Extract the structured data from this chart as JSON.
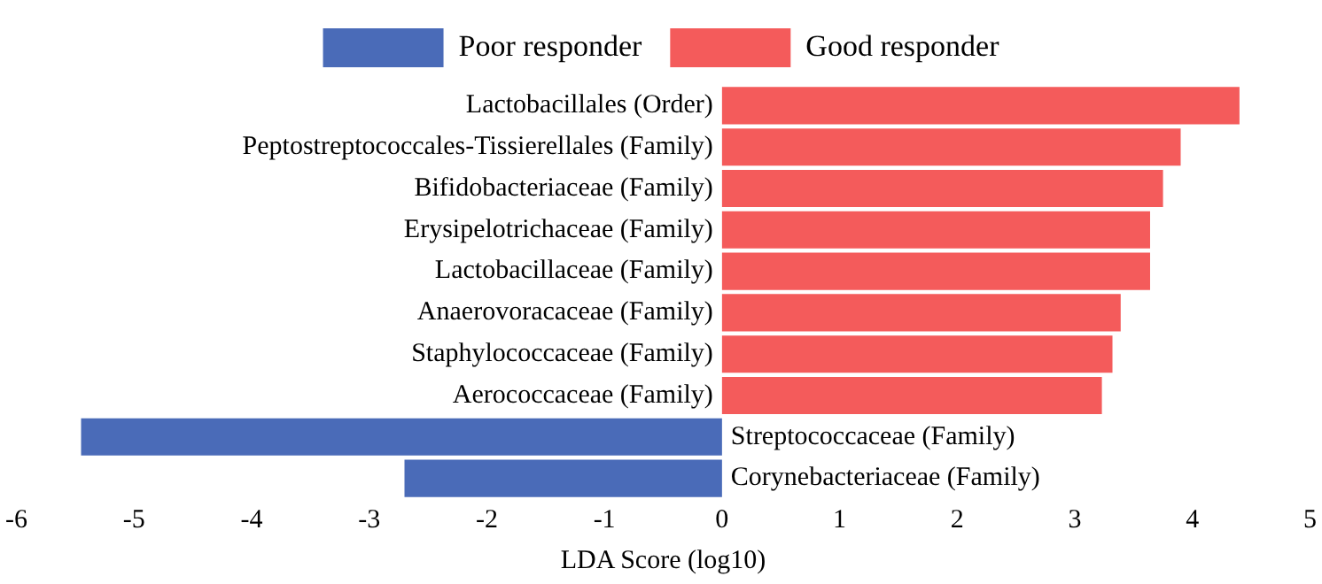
{
  "chart_data": {
    "type": "bar",
    "orientation": "horizontal",
    "xlabel": "LDA Score (log10)",
    "categories": [
      "Lactobacillales (Order)",
      "Peptostreptococcales-Tissierellales (Family)",
      "Bifidobacteriaceae (Family)",
      "Erysipelotrichaceae (Family)",
      "Lactobacillaceae (Family)",
      "Anaerovoracaceae (Family)",
      "Staphylococcaceae (Family)",
      "Aerococcaceae (Family)",
      "Streptococcaceae (Family)",
      "Corynebacteriaceae (Family)"
    ],
    "series": [
      {
        "name": "Poor responder",
        "color": "#4a6bb8",
        "values": [
          null,
          null,
          null,
          null,
          null,
          null,
          null,
          null,
          -5.45,
          -2.7
        ]
      },
      {
        "name": "Good responder",
        "color": "#f45b5b",
        "values": [
          4.4,
          3.9,
          3.75,
          3.64,
          3.64,
          3.39,
          3.32,
          3.23,
          null,
          null
        ]
      }
    ],
    "xlim": [
      -6,
      5
    ],
    "xticks": [
      -6,
      -5,
      -4,
      -3,
      -2,
      -1,
      0,
      1,
      2,
      3,
      4,
      5
    ],
    "grid": false,
    "legend": "top"
  }
}
